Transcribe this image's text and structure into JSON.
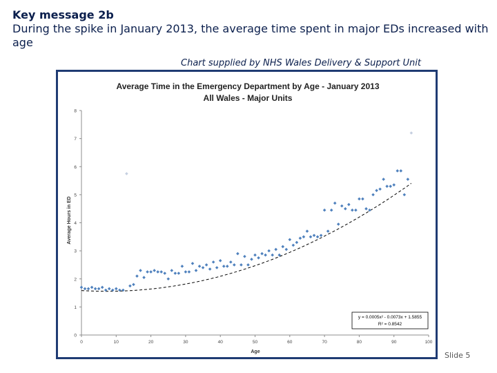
{
  "slide": {
    "kicker": "Key message 2b",
    "message": "During the spike in January 2013, the average time spent in major EDs increased with age",
    "credit": "Chart supplied by NHS Wales Delivery & Support Unit",
    "slide_number": "Slide 5"
  },
  "chart_data": {
    "type": "scatter",
    "title": "Average Time in the Emergency Department by Age - January 2013",
    "subtitle": "All Wales - Major Units",
    "xlabel": "Age",
    "ylabel": "Average Hours in ED",
    "xlim": [
      0,
      100
    ],
    "ylim": [
      0,
      8
    ],
    "xticks": [
      0,
      10,
      20,
      30,
      40,
      50,
      60,
      70,
      80,
      90,
      100
    ],
    "yticks": [
      0,
      1,
      2,
      3,
      4,
      5,
      6,
      7,
      8
    ],
    "grid": false,
    "marker_color": "#4f81bd",
    "trendline": {
      "type": "polynomial",
      "equation": "y = 0.0005x² - 0.0073x + 1.5855",
      "r_squared": "R² = 0.8542",
      "coefficients": [
        0.0005,
        -0.0073,
        1.5855
      ],
      "color": "#000000",
      "style": "dashed"
    },
    "points": {
      "x": [
        0,
        1,
        2,
        3,
        4,
        5,
        6,
        7,
        8,
        9,
        10,
        11,
        12,
        13,
        14,
        15,
        16,
        17,
        18,
        19,
        20,
        21,
        22,
        23,
        24,
        25,
        26,
        27,
        28,
        29,
        30,
        31,
        32,
        33,
        34,
        35,
        36,
        37,
        38,
        39,
        40,
        41,
        42,
        43,
        44,
        45,
        46,
        47,
        48,
        49,
        50,
        51,
        52,
        53,
        54,
        55,
        56,
        57,
        58,
        59,
        60,
        61,
        62,
        63,
        64,
        65,
        66,
        67,
        68,
        69,
        70,
        71,
        72,
        73,
        74,
        75,
        76,
        77,
        78,
        79,
        80,
        81,
        82,
        83,
        84,
        85,
        86,
        87,
        88,
        89,
        90,
        91,
        92,
        93,
        94,
        95
      ],
      "y": [
        1.7,
        1.65,
        1.65,
        1.7,
        1.65,
        1.65,
        1.7,
        1.6,
        1.65,
        1.6,
        1.65,
        1.6,
        1.6,
        5.75,
        1.75,
        1.8,
        2.1,
        2.3,
        2.05,
        2.25,
        2.25,
        2.3,
        2.25,
        2.25,
        2.2,
        2.0,
        2.3,
        2.2,
        2.2,
        2.45,
        2.25,
        2.25,
        2.55,
        2.3,
        2.45,
        2.4,
        2.5,
        2.35,
        2.6,
        2.4,
        2.65,
        2.45,
        2.45,
        2.6,
        2.5,
        2.9,
        2.5,
        2.8,
        2.5,
        2.7,
        2.85,
        2.75,
        2.9,
        2.85,
        3.0,
        2.85,
        3.05,
        2.85,
        3.15,
        3.05,
        3.4,
        3.2,
        3.3,
        3.45,
        3.5,
        3.7,
        3.5,
        3.55,
        3.5,
        3.55,
        4.45,
        3.7,
        4.45,
        4.7,
        3.95,
        4.6,
        4.5,
        4.65,
        4.45,
        4.45,
        4.85,
        4.85,
        4.5,
        4.45,
        5.0,
        5.15,
        5.2,
        5.55,
        5.3,
        5.3,
        5.35,
        5.85,
        5.85,
        5.0,
        5.55,
        7.2
      ]
    }
  }
}
